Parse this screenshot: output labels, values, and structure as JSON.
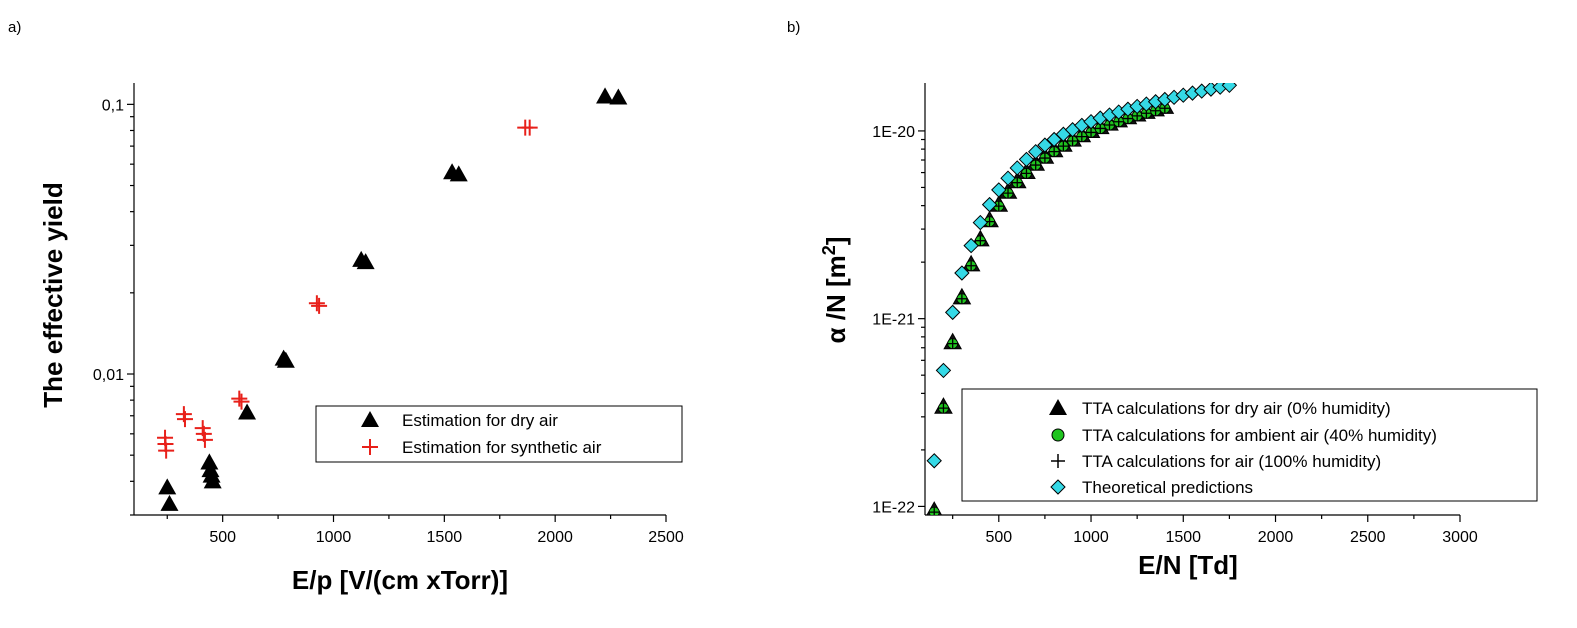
{
  "colors": {
    "triangle": "#000000",
    "synthetic_plus": "#e8201a",
    "green_circle": "#1fc41f",
    "cyan_diamond": "#35d9e6"
  },
  "chart_data": [
    {
      "type": "scatter",
      "panel_label": "a)",
      "xlabel": "E/p [V/(cm xTorr)]",
      "ylabel": "The effective yield",
      "x_scale": "linear",
      "y_scale": "log",
      "xlim": [
        100,
        2500
      ],
      "ylim": [
        0.003,
        0.12
      ],
      "x_ticks": [
        500,
        1000,
        1500,
        2000,
        2500
      ],
      "x_tick_labels": [
        "500",
        "1000",
        "1500",
        "2000",
        "2500"
      ],
      "y_ticks": [
        0.01,
        0.1
      ],
      "y_tick_labels": [
        "0,01",
        "0,1"
      ],
      "grid": false,
      "legend_position": "lower-right",
      "series": [
        {
          "name": "Estimation for dry air",
          "marker": "triangle",
          "points": [
            [
              250,
              0.0038
            ],
            [
              260,
              0.0033
            ],
            [
              440,
              0.0047
            ],
            [
              445,
              0.0044
            ],
            [
              450,
              0.0042
            ],
            [
              455,
              0.004
            ],
            [
              610,
              0.0072
            ],
            [
              775,
              0.0114
            ],
            [
              785,
              0.0112
            ],
            [
              1125,
              0.0265
            ],
            [
              1145,
              0.026
            ],
            [
              1535,
              0.056
            ],
            [
              1565,
              0.055
            ],
            [
              2225,
              0.107
            ],
            [
              2285,
              0.106
            ]
          ]
        },
        {
          "name": "Estimation for synthetic air",
          "marker": "plus",
          "points": [
            [
              240,
              0.0058
            ],
            [
              242,
              0.0055
            ],
            [
              245,
              0.0052
            ],
            [
              325,
              0.0071
            ],
            [
              330,
              0.0068
            ],
            [
              410,
              0.0063
            ],
            [
              415,
              0.006
            ],
            [
              420,
              0.0057
            ],
            [
              575,
              0.0081
            ],
            [
              585,
              0.0079
            ],
            [
              925,
              0.0183
            ],
            [
              935,
              0.0179
            ],
            [
              1865,
              0.082
            ],
            [
              1885,
              0.082
            ]
          ]
        }
      ]
    },
    {
      "type": "scatter",
      "panel_label": "b)",
      "xlabel": "E/N [Td]",
      "ylabel_main": "α /N [m",
      "ylabel_sup": "2",
      "ylabel_end": "]",
      "x_scale": "linear",
      "y_scale": "log",
      "xlim": [
        100,
        3000
      ],
      "ylim": [
        9e-23,
        1.8e-20
      ],
      "x_ticks": [
        500,
        1000,
        1500,
        2000,
        2500,
        3000
      ],
      "x_tick_labels": [
        "500",
        "1000",
        "1500",
        "2000",
        "2500",
        "3000"
      ],
      "y_ticks": [
        1e-22,
        1e-21,
        1e-20
      ],
      "y_tick_labels": [
        "1E-22",
        "1E-21",
        "1E-20"
      ],
      "grid": false,
      "legend_position": "lower-right",
      "series": [
        {
          "name": "TTA calculations for dry air (0% humidity)",
          "marker": "triangle",
          "x": [
            150,
            200,
            250,
            300,
            350,
            400,
            450,
            500,
            550,
            600,
            650,
            700,
            750,
            800,
            850,
            900,
            950,
            1000,
            1050,
            1100,
            1150,
            1200,
            1250,
            1300,
            1350,
            1400
          ],
          "y": [
            9.5e-23,
            3.4e-22,
            7.5e-22,
            1.3e-21,
            1.95e-21,
            2.65e-21,
            3.35e-21,
            4.05e-21,
            4.75e-21,
            5.4e-21,
            6.05e-21,
            6.7e-21,
            7.3e-21,
            7.9e-21,
            8.45e-21,
            9e-21,
            9.5e-21,
            1e-20,
            1.05e-20,
            1.095e-20,
            1.14e-20,
            1.185e-20,
            1.225e-20,
            1.265e-20,
            1.305e-20,
            1.345e-20
          ]
        },
        {
          "name": "TTA calculations for ambient air (40% humidity)",
          "marker": "circle",
          "x": [
            150,
            200,
            250,
            300,
            350,
            400,
            450,
            500,
            550,
            600,
            650,
            700,
            750,
            800,
            850,
            900,
            950,
            1000,
            1050,
            1100,
            1150,
            1200,
            1250,
            1300,
            1350,
            1400
          ],
          "y": [
            9.5e-23,
            3.4e-22,
            7.5e-22,
            1.3e-21,
            1.95e-21,
            2.65e-21,
            3.35e-21,
            4.05e-21,
            4.75e-21,
            5.4e-21,
            6.05e-21,
            6.7e-21,
            7.3e-21,
            7.9e-21,
            8.45e-21,
            9e-21,
            9.5e-21,
            1e-20,
            1.05e-20,
            1.095e-20,
            1.14e-20,
            1.185e-20,
            1.225e-20,
            1.265e-20,
            1.305e-20,
            1.345e-20
          ]
        },
        {
          "name": "TTA calculations for air (100% humidity)",
          "marker": "plus",
          "x": [
            150,
            200,
            250,
            300,
            350,
            400,
            450,
            500,
            550,
            600,
            650,
            700,
            750,
            800,
            850,
            900,
            950,
            1000,
            1050,
            1100,
            1150,
            1200,
            1250,
            1300,
            1350,
            1400
          ],
          "y": [
            9.5e-23,
            3.4e-22,
            7.5e-22,
            1.3e-21,
            1.95e-21,
            2.65e-21,
            3.35e-21,
            4.05e-21,
            4.75e-21,
            5.4e-21,
            6.05e-21,
            6.7e-21,
            7.3e-21,
            7.9e-21,
            8.45e-21,
            9e-21,
            9.5e-21,
            1e-20,
            1.05e-20,
            1.095e-20,
            1.14e-20,
            1.185e-20,
            1.225e-20,
            1.265e-20,
            1.305e-20,
            1.345e-20
          ]
        },
        {
          "name": "Theoretical predictions",
          "marker": "diamond",
          "x": [
            150,
            200,
            250,
            300,
            350,
            400,
            450,
            500,
            550,
            600,
            650,
            700,
            750,
            800,
            850,
            900,
            950,
            1000,
            1050,
            1100,
            1150,
            1200,
            1250,
            1300,
            1350,
            1400,
            1450,
            1500,
            1550,
            1600,
            1650,
            1700,
            1750
          ],
          "y": [
            1.75e-22,
            5.3e-22,
            1.08e-21,
            1.75e-21,
            2.45e-21,
            3.25e-21,
            4.05e-21,
            4.85e-21,
            5.6e-21,
            6.35e-21,
            7.05e-21,
            7.75e-21,
            8.4e-21,
            9e-21,
            9.6e-21,
            1.015e-20,
            1.07e-20,
            1.12e-20,
            1.17e-20,
            1.215e-20,
            1.26e-20,
            1.305e-20,
            1.35e-20,
            1.39e-20,
            1.43e-20,
            1.47e-20,
            1.51e-20,
            1.55e-20,
            1.59e-20,
            1.63e-20,
            1.67e-20,
            1.71e-20,
            1.75e-20
          ]
        }
      ]
    }
  ]
}
